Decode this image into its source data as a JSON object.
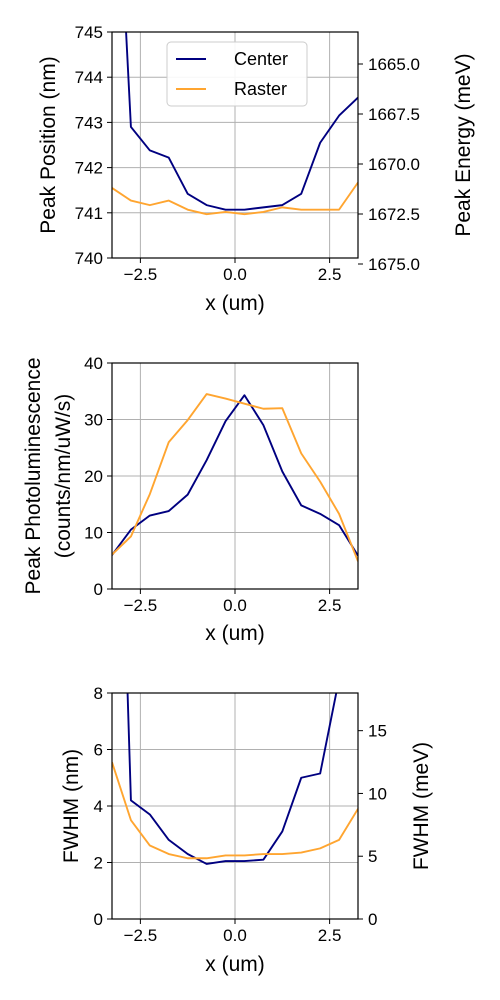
{
  "chart_data": [
    {
      "type": "line",
      "title": "",
      "xlabel": "x (um)",
      "ylabel": "Peak Position (nm)",
      "y2label": "Peak Energy (meV)",
      "xlim": [
        -3.25,
        3.25
      ],
      "ylim": [
        740,
        745
      ],
      "y2lim": [
        1674.7,
        1663.4
      ],
      "xticks": [
        -2.5,
        0.0,
        2.5
      ],
      "xtick_labels": [
        "−2.5",
        "0.0",
        "2.5"
      ],
      "yticks": [
        740,
        741,
        742,
        743,
        744,
        745
      ],
      "ytick_labels": [
        "740",
        "741",
        "742",
        "743",
        "744",
        "745"
      ],
      "y2ticks": [
        1665.0,
        1667.5,
        1670.0,
        1672.5,
        1675.0
      ],
      "y2tick_labels": [
        "1665.0",
        "1667.5",
        "1670.0",
        "1672.5",
        "1675.0"
      ],
      "grid": true,
      "legend": "top-center",
      "series": [
        {
          "name": "Center",
          "color": "#000080",
          "x": [
            -3.0,
            -2.75,
            -2.25,
            -1.75,
            -1.25,
            -0.75,
            -0.25,
            0.25,
            0.75,
            1.25,
            1.75,
            2.25,
            2.75,
            3.25
          ],
          "y": [
            747.0,
            742.9,
            742.38,
            742.22,
            741.42,
            741.17,
            741.07,
            741.07,
            741.12,
            741.17,
            741.42,
            742.55,
            743.15,
            743.55
          ]
        },
        {
          "name": "Raster",
          "color": "#ffa530",
          "x": [
            -3.25,
            -2.75,
            -2.25,
            -1.75,
            -1.25,
            -0.75,
            -0.25,
            0.25,
            0.75,
            1.25,
            1.75,
            2.25,
            2.75,
            3.25
          ],
          "y": [
            741.55,
            741.27,
            741.17,
            741.27,
            741.07,
            740.97,
            741.02,
            740.97,
            741.02,
            741.12,
            741.07,
            741.07,
            741.07,
            741.67
          ]
        }
      ]
    },
    {
      "type": "line",
      "title": "",
      "xlabel": "x (um)",
      "ylabel": "Peak Photoluminescence",
      "ylabel2": "(counts/nm/uW/s)",
      "xlim": [
        -3.25,
        3.25
      ],
      "ylim": [
        0,
        40
      ],
      "xticks": [
        -2.5,
        0.0,
        2.5
      ],
      "xtick_labels": [
        "−2.5",
        "0.0",
        "2.5"
      ],
      "yticks": [
        0,
        10,
        20,
        30,
        40
      ],
      "ytick_labels": [
        "0",
        "10",
        "20",
        "30",
        "40"
      ],
      "grid": true,
      "series": [
        {
          "name": "Center",
          "color": "#000080",
          "x": [
            -3.25,
            -2.75,
            -2.25,
            -1.75,
            -1.25,
            -0.75,
            -0.25,
            0.25,
            0.75,
            1.25,
            1.75,
            2.25,
            2.75,
            3.25
          ],
          "y": [
            6.0,
            10.5,
            13.0,
            13.8,
            16.7,
            22.8,
            29.7,
            34.3,
            29.0,
            20.8,
            14.8,
            13.3,
            11.3,
            5.9
          ]
        },
        {
          "name": "Raster",
          "color": "#ffa530",
          "x": [
            -3.25,
            -2.75,
            -2.25,
            -1.75,
            -1.25,
            -0.75,
            -0.25,
            0.25,
            0.75,
            1.25,
            1.75,
            2.25,
            2.75,
            3.25
          ],
          "y": [
            6.1,
            9.3,
            16.8,
            26.0,
            29.9,
            34.5,
            33.7,
            32.8,
            31.9,
            32.0,
            24.0,
            19.0,
            13.3,
            4.9
          ]
        }
      ]
    },
    {
      "type": "line",
      "title": "",
      "xlabel": "x (um)",
      "ylabel": "FWHM (nm)",
      "y2label": "FWHM (meV)",
      "xlim": [
        -3.25,
        3.25
      ],
      "ylim": [
        0,
        8
      ],
      "y2lim": [
        0,
        18
      ],
      "xticks": [
        -2.5,
        0.0,
        2.5
      ],
      "xtick_labels": [
        "−2.5",
        "0.0",
        "2.5"
      ],
      "yticks": [
        0,
        2,
        4,
        6,
        8
      ],
      "ytick_labels": [
        "0",
        "2",
        "4",
        "6",
        "8"
      ],
      "y2ticks": [
        0,
        5,
        10,
        15
      ],
      "y2tick_labels": [
        "0",
        "5",
        "10",
        "15"
      ],
      "grid": true,
      "series": [
        {
          "name": "Center",
          "color": "#000080",
          "x": [
            -2.85,
            -2.75,
            -2.25,
            -1.75,
            -1.25,
            -0.75,
            -0.25,
            0.25,
            0.75,
            1.25,
            1.75,
            2.25,
            2.75,
            3.0
          ],
          "y": [
            8.5,
            4.2,
            3.7,
            2.8,
            2.3,
            1.95,
            2.05,
            2.05,
            2.1,
            3.1,
            5.0,
            5.15,
            8.5,
            8.5
          ]
        },
        {
          "name": "Raster",
          "color": "#ffa530",
          "x": [
            -3.25,
            -2.75,
            -2.25,
            -1.75,
            -1.25,
            -0.75,
            -0.25,
            0.25,
            0.75,
            1.25,
            1.75,
            2.25,
            2.75,
            3.25
          ],
          "y": [
            5.55,
            3.5,
            2.6,
            2.3,
            2.15,
            2.15,
            2.25,
            2.25,
            2.3,
            2.3,
            2.35,
            2.5,
            2.8,
            3.9
          ]
        }
      ]
    }
  ]
}
